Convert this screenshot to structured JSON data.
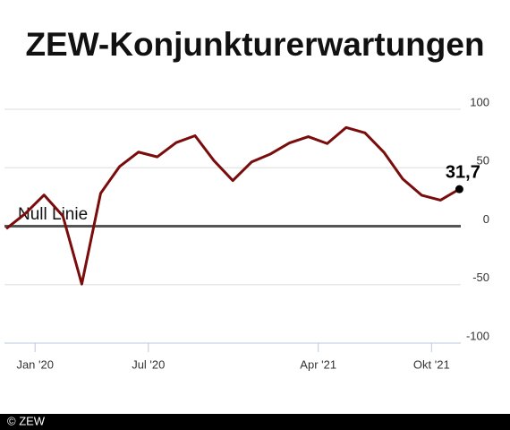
{
  "chart_data": {
    "type": "line",
    "title": "ZEW-Konjunkturerwartungen",
    "categories": [
      null,
      null,
      "Jan '20",
      null,
      null,
      null,
      null,
      null,
      "Jul '20",
      null,
      null,
      null,
      null,
      null,
      null,
      null,
      null,
      "Apr '21",
      null,
      null,
      null,
      null,
      null,
      "Okt '21",
      null
    ],
    "series": [
      {
        "name": null,
        "color": "#7a0c0c",
        "values": [
          -2.1,
          10.7,
          26.7,
          8.7,
          -49.5,
          28.2,
          51.0,
          63.4,
          59.3,
          71.5,
          77.4,
          56.1,
          39.0,
          55.0,
          61.8,
          71.2,
          76.6,
          70.7,
          84.4,
          79.8,
          63.3,
          40.4,
          26.5,
          22.3,
          31.7
        ],
        "value_labels": [
          null,
          null,
          null,
          null,
          null,
          null,
          null,
          null,
          null,
          null,
          null,
          null,
          null,
          null,
          null,
          null,
          null,
          null,
          null,
          null,
          null,
          null,
          null,
          null,
          "31,7"
        ]
      }
    ],
    "ylim": [
      -100,
      100
    ],
    "yticks": [
      100,
      50,
      0,
      -50,
      -100
    ],
    "grid": true,
    "annotation": "Null Linie",
    "source": "© ZEW"
  }
}
